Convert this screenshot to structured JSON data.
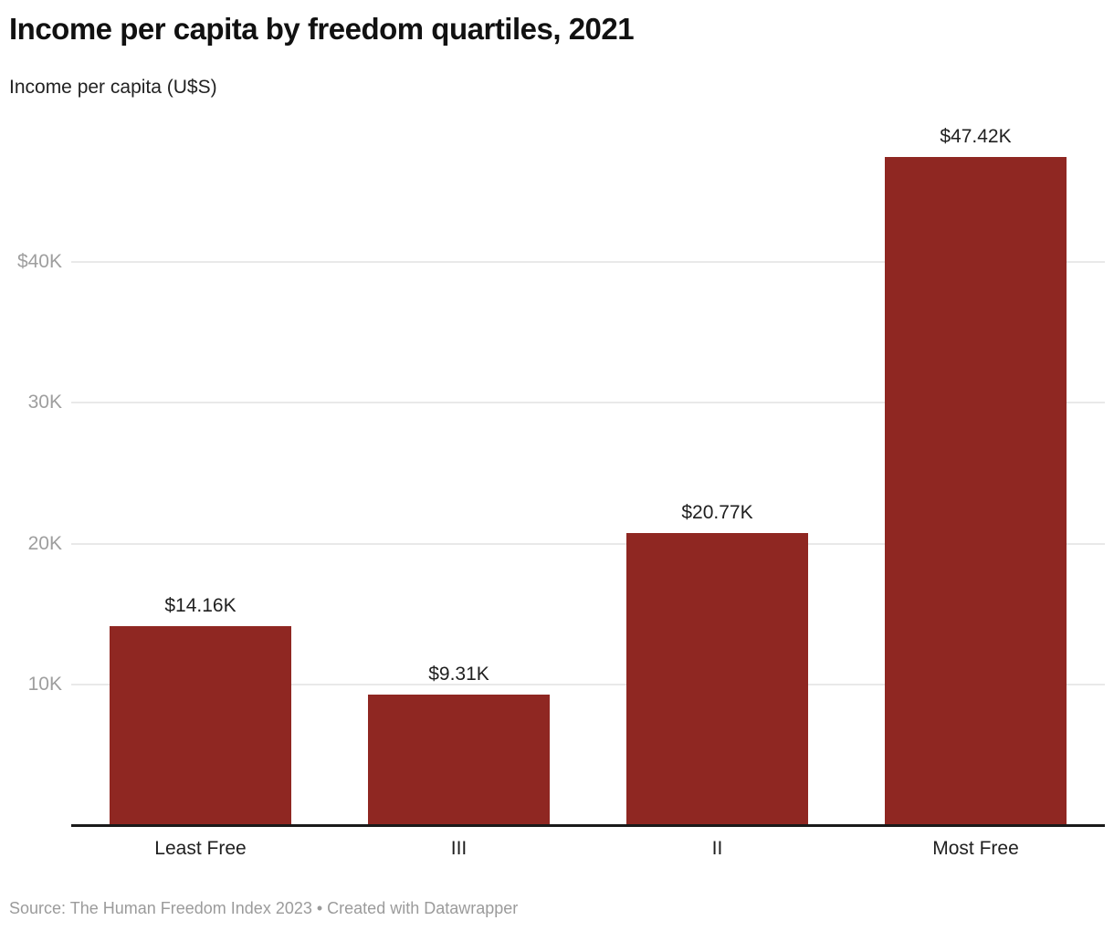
{
  "header": {
    "title": "Income per capita by freedom quartiles, 2021",
    "subtitle": "Income per capita (U$S)"
  },
  "footer": {
    "text": "Source: The Human Freedom Index 2023 • Created with Datawrapper"
  },
  "colors": {
    "bar": "#8f2722",
    "grid": "#e9e9e9",
    "axis_line": "#1a1a1a",
    "tick_label": "#9e9e9e",
    "label_text": "#1f1f1f",
    "footer_text": "#9b9b9b"
  },
  "chart_data": {
    "type": "bar",
    "title": "Income per capita by freedom quartiles, 2021",
    "xlabel": "",
    "ylabel": "Income per capita (U$S)",
    "categories": [
      "Least Free",
      "III",
      "II",
      "Most Free"
    ],
    "values": [
      14160,
      9310,
      20770,
      47420
    ],
    "value_labels": [
      "$14.16K",
      "$9.31K",
      "$20.77K",
      "$47.42K"
    ],
    "ylim": [
      0,
      49000
    ],
    "yticks": [
      {
        "value": 10000,
        "label": "10K"
      },
      {
        "value": 20000,
        "label": "20K"
      },
      {
        "value": 30000,
        "label": "30K"
      },
      {
        "value": 40000,
        "label": "$40K"
      }
    ],
    "grid": true,
    "legend": false,
    "bar_color": "#8f2722"
  }
}
